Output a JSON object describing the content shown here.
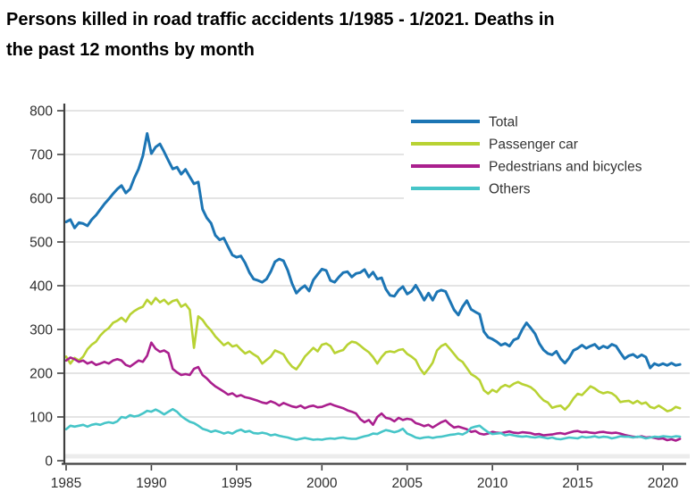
{
  "page": {
    "title_line1": "Persons killed in road traffic accidents 1/1985 - 1/2021. Deaths in",
    "title_line2": "the past 12 months by month"
  },
  "colors": {
    "background": "#ffffff",
    "grid": "#dcdcdc",
    "zero_band": "#ececec",
    "axis": "#3f3f3f",
    "tick_label": "#2e2e2e",
    "legend_text": "#333333"
  },
  "chart_data": {
    "type": "line",
    "title": "Persons killed in road traffic accidents 1/1985 - 1/2021. Deaths in the past 12 months by month",
    "xlabel": "",
    "ylabel": "",
    "grid": "horizontal",
    "legend_position": "top-right-inside",
    "x_axis": {
      "min": 1985,
      "max": 2021,
      "tick_values": [
        1985,
        1990,
        1995,
        2000,
        2005,
        2010,
        2015,
        2020
      ],
      "tick_labels": [
        "1985",
        "1990",
        "1995",
        "2000",
        "2005",
        "2010",
        "2015",
        "2020"
      ]
    },
    "y_axis": {
      "min": 0,
      "max": 800,
      "tick_values": [
        0,
        100,
        200,
        300,
        400,
        500,
        600,
        700,
        800
      ]
    },
    "x_start": 1985,
    "x_step": 0.25,
    "x_end": 2021,
    "series": [
      {
        "name": "Total",
        "color": "#1c75b4",
        "line_width": 3,
        "values": [
          546,
          551,
          532,
          544,
          542,
          537,
          551,
          561,
          574,
          587,
          598,
          610,
          621,
          629,
          612,
          621,
          646,
          667,
          697,
          748,
          702,
          717,
          724,
          706,
          686,
          667,
          671,
          655,
          666,
          649,
          633,
          637,
          575,
          555,
          543,
          515,
          505,
          509,
          489,
          470,
          465,
          468,
          452,
          430,
          415,
          412,
          408,
          415,
          432,
          455,
          461,
          457,
          435,
          405,
          383,
          393,
          400,
          388,
          413,
          426,
          438,
          435,
          412,
          408,
          420,
          430,
          432,
          420,
          428,
          430,
          437,
          420,
          431,
          415,
          418,
          392,
          378,
          376,
          390,
          398,
          381,
          387,
          401,
          385,
          367,
          383,
          367,
          386,
          390,
          387,
          366,
          345,
          333,
          352,
          366,
          346,
          340,
          335,
          295,
          282,
          278,
          272,
          264,
          268,
          262,
          276,
          280,
          300,
          315,
          303,
          290,
          268,
          253,
          245,
          242,
          250,
          233,
          223,
          235,
          252,
          257,
          264,
          257,
          262,
          266,
          256,
          262,
          258,
          266,
          262,
          247,
          233,
          240,
          243,
          236,
          242,
          237,
          212,
          222,
          218,
          222,
          218,
          223,
          218,
          220
        ]
      },
      {
        "name": "Passenger car",
        "color": "#b8d233",
        "line_width": 2.6,
        "values": [
          238,
          222,
          235,
          229,
          238,
          255,
          265,
          272,
          286,
          296,
          303,
          315,
          320,
          327,
          318,
          334,
          342,
          348,
          352,
          368,
          358,
          372,
          362,
          368,
          358,
          365,
          368,
          352,
          358,
          345,
          258,
          330,
          322,
          308,
          298,
          284,
          274,
          264,
          270,
          261,
          264,
          254,
          245,
          250,
          243,
          237,
          222,
          230,
          238,
          252,
          248,
          243,
          227,
          215,
          209,
          222,
          238,
          248,
          258,
          250,
          265,
          268,
          262,
          246,
          250,
          253,
          265,
          272,
          270,
          263,
          255,
          248,
          237,
          222,
          237,
          248,
          250,
          248,
          253,
          255,
          244,
          238,
          230,
          211,
          198,
          210,
          224,
          252,
          262,
          267,
          256,
          244,
          232,
          226,
          212,
          198,
          192,
          184,
          161,
          153,
          162,
          157,
          168,
          173,
          169,
          176,
          180,
          175,
          172,
          168,
          160,
          148,
          138,
          133,
          121,
          124,
          126,
          117,
          127,
          142,
          153,
          150,
          160,
          170,
          165,
          158,
          154,
          157,
          154,
          147,
          134,
          136,
          137,
          131,
          137,
          130,
          133,
          123,
          120,
          126,
          120,
          113,
          116,
          123,
          120
        ]
      },
      {
        "name": "Pedestrians and bicycles",
        "color": "#aa1f8e",
        "line_width": 2.6,
        "values": [
          229,
          236,
          232,
          226,
          229,
          222,
          226,
          219,
          222,
          226,
          222,
          229,
          232,
          229,
          219,
          215,
          222,
          229,
          226,
          240,
          270,
          256,
          249,
          252,
          246,
          210,
          202,
          196,
          198,
          196,
          210,
          214,
          196,
          188,
          178,
          170,
          164,
          158,
          151,
          154,
          147,
          150,
          145,
          143,
          140,
          137,
          133,
          131,
          136,
          132,
          126,
          132,
          128,
          124,
          122,
          126,
          120,
          124,
          126,
          122,
          123,
          127,
          130,
          126,
          123,
          120,
          115,
          112,
          108,
          95,
          88,
          93,
          82,
          100,
          108,
          98,
          96,
          90,
          98,
          93,
          96,
          94,
          86,
          83,
          79,
          82,
          76,
          82,
          88,
          92,
          83,
          76,
          78,
          75,
          72,
          66,
          68,
          62,
          60,
          62,
          66,
          64,
          63,
          65,
          67,
          64,
          63,
          65,
          64,
          63,
          60,
          61,
          58,
          59,
          60,
          62,
          63,
          61,
          64,
          67,
          68,
          65,
          66,
          64,
          63,
          65,
          66,
          64,
          63,
          64,
          62,
          59,
          57,
          55,
          54,
          56,
          53,
          54,
          52,
          50,
          51,
          47,
          49,
          46,
          50
        ]
      },
      {
        "name": "Others",
        "color": "#46c5c8",
        "line_width": 2.6,
        "values": [
          72,
          80,
          78,
          80,
          82,
          78,
          82,
          84,
          82,
          86,
          88,
          86,
          90,
          100,
          98,
          104,
          101,
          103,
          108,
          114,
          112,
          117,
          112,
          106,
          112,
          118,
          112,
          102,
          95,
          89,
          86,
          80,
          73,
          70,
          66,
          69,
          66,
          62,
          65,
          62,
          68,
          71,
          66,
          68,
          63,
          62,
          64,
          62,
          58,
          60,
          57,
          55,
          53,
          50,
          48,
          50,
          52,
          50,
          48,
          49,
          48,
          50,
          51,
          50,
          52,
          53,
          51,
          50,
          50,
          53,
          56,
          58,
          62,
          61,
          66,
          70,
          68,
          65,
          68,
          73,
          62,
          58,
          53,
          51,
          53,
          54,
          52,
          54,
          55,
          57,
          59,
          60,
          62,
          60,
          65,
          75,
          78,
          80,
          72,
          65,
          61,
          62,
          63,
          58,
          60,
          58,
          56,
          55,
          56,
          54,
          53,
          55,
          53,
          51,
          53,
          50,
          49,
          51,
          53,
          52,
          51,
          55,
          53,
          54,
          56,
          53,
          55,
          54,
          51,
          53,
          56,
          55,
          55,
          53,
          55,
          54,
          51,
          53,
          55,
          54,
          56,
          55,
          54,
          56,
          55
        ]
      }
    ]
  }
}
